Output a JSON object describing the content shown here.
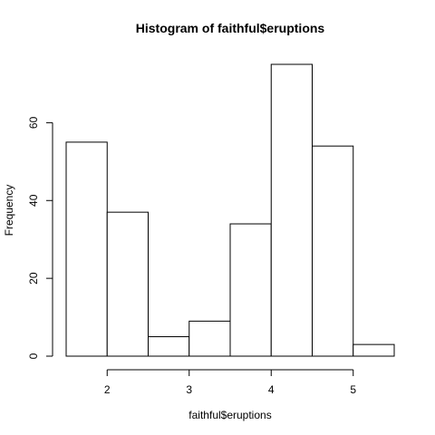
{
  "chart_data": {
    "type": "bar",
    "title": "Histogram of faithful$eruptions",
    "xlabel": "faithful$eruptions",
    "ylabel": "Frequency",
    "bins": [
      {
        "start": 1.5,
        "end": 2.0,
        "count": 55
      },
      {
        "start": 2.0,
        "end": 2.5,
        "count": 37
      },
      {
        "start": 2.5,
        "end": 3.0,
        "count": 5
      },
      {
        "start": 3.0,
        "end": 3.5,
        "count": 9
      },
      {
        "start": 3.5,
        "end": 4.0,
        "count": 34
      },
      {
        "start": 4.0,
        "end": 4.5,
        "count": 75
      },
      {
        "start": 4.5,
        "end": 5.0,
        "count": 54
      },
      {
        "start": 5.0,
        "end": 5.5,
        "count": 3
      }
    ],
    "xlim": [
      1.5,
      5.5
    ],
    "ylim": [
      0,
      75
    ],
    "x_ticks": [
      2,
      3,
      4,
      5
    ],
    "y_ticks": [
      0,
      20,
      40,
      60
    ],
    "grid": false,
    "legend": "none",
    "colors": {
      "bar_fill": "#ffffff",
      "bar_stroke": "#000000"
    }
  }
}
